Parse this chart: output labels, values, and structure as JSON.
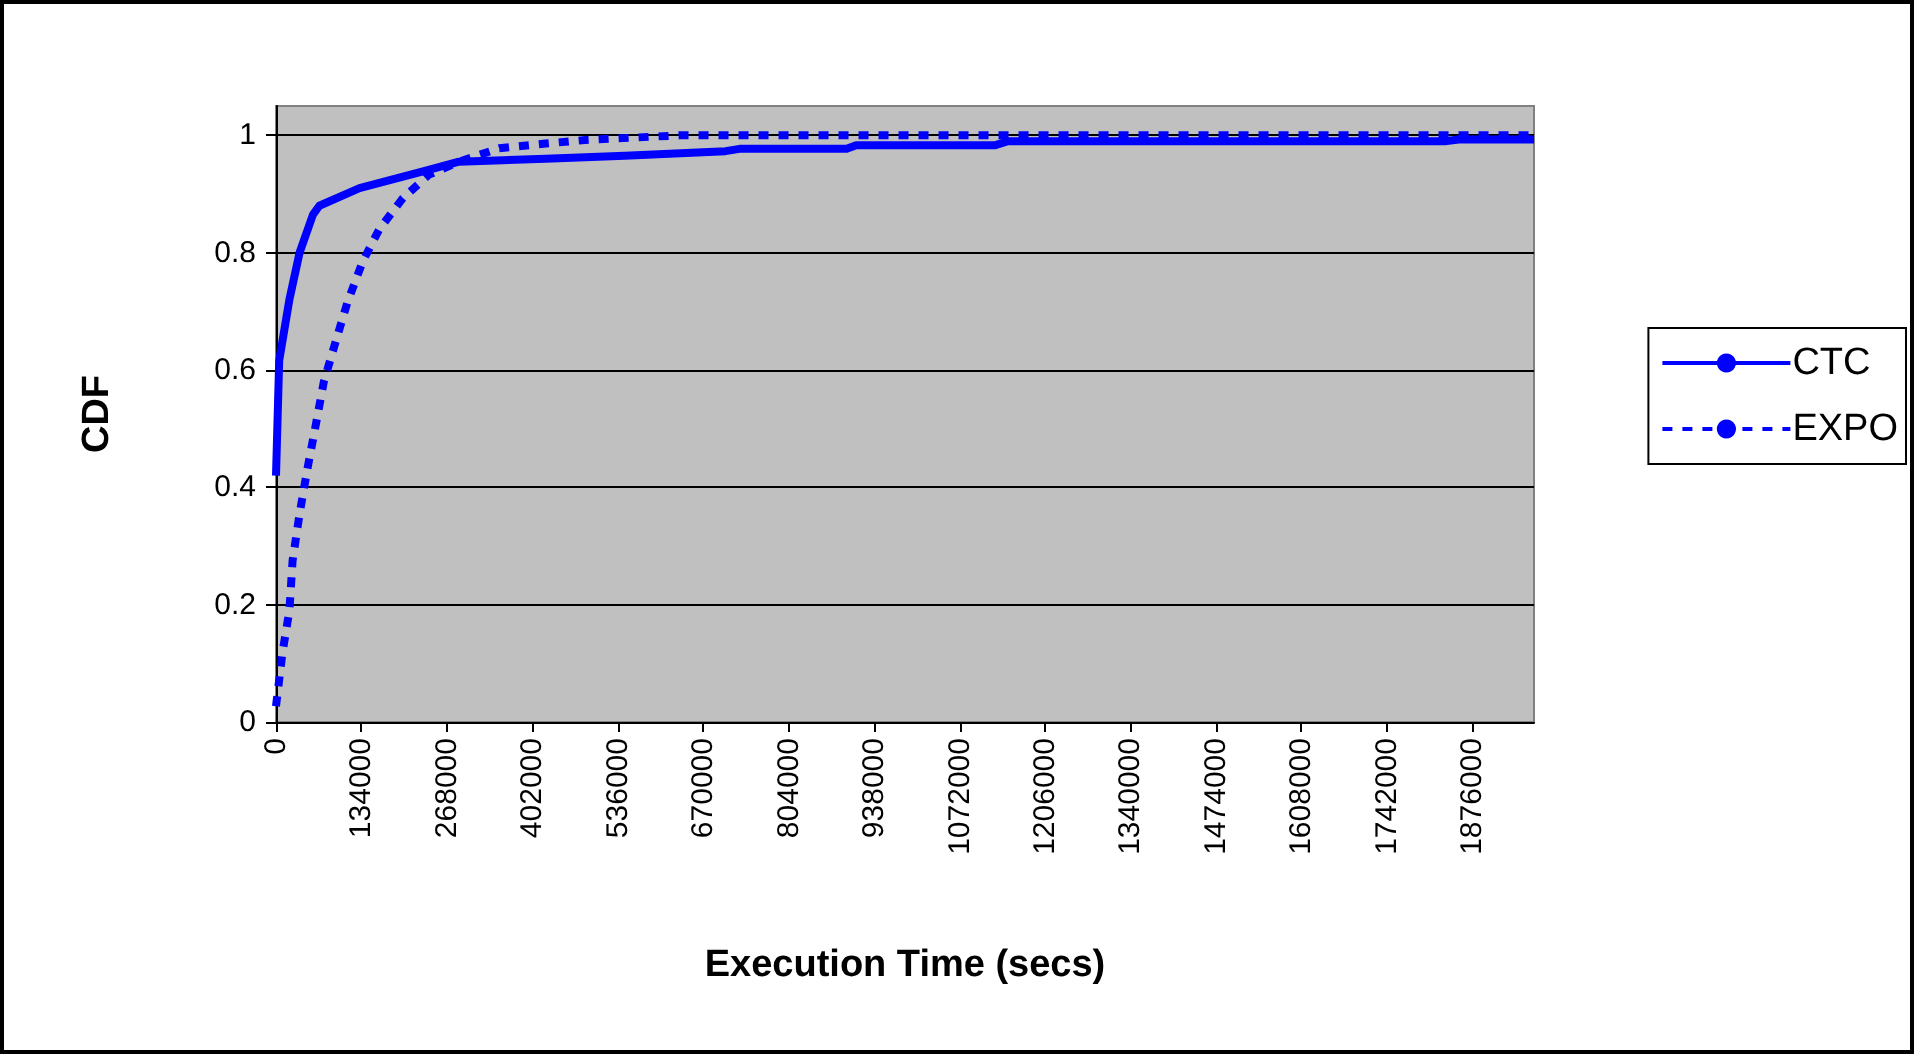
{
  "chart_data": {
    "type": "line",
    "xlabel": "Execution Time (secs)",
    "ylabel": "CDF",
    "xlim": [
      0,
      1973000
    ],
    "xticks": [
      0,
      134000,
      268000,
      402000,
      536000,
      670000,
      804000,
      938000,
      1072000,
      1206000,
      1340000,
      1474000,
      1608000,
      1742000,
      1876000
    ],
    "ylim": [
      0,
      1.05
    ],
    "yticks": [
      0,
      0.2,
      0.4,
      0.6,
      0.8,
      1
    ],
    "grid": "y",
    "legend": "right",
    "marker": "none",
    "series": [
      {
        "name": "CTC",
        "color": "#0000ff",
        "line_style": "solid",
        "x": [
          0,
          5000,
          21000,
          37000,
          58000,
          68000,
          131000,
          235000,
          287000,
          423000,
          547000,
          705000,
          727000,
          884000,
          895000,
          910000,
          1127000,
          1148000,
          1833000,
          1855000,
          1973000
        ],
        "values": [
          0.42,
          0.616,
          0.72,
          0.8,
          0.865,
          0.88,
          0.91,
          0.94,
          0.955,
          0.96,
          0.965,
          0.973,
          0.977,
          0.977,
          0.977,
          0.983,
          0.983,
          0.99,
          0.99,
          0.993,
          0.993
        ]
      },
      {
        "name": "EXPO",
        "color": "#0000ff",
        "line_style": "dashed",
        "x": [
          0,
          10000,
          21000,
          26000,
          37000,
          49000,
          63000,
          75000,
          94000,
          112000,
          136000,
          162000,
          199000,
          240000,
          287000,
          350000,
          423000,
          485000,
          633000,
          1973000
        ],
        "values": [
          0.027,
          0.117,
          0.19,
          0.275,
          0.355,
          0.43,
          0.51,
          0.58,
          0.65,
          0.715,
          0.785,
          0.84,
          0.893,
          0.933,
          0.955,
          0.978,
          0.986,
          0.992,
          1.0,
          1.0
        ]
      }
    ]
  }
}
